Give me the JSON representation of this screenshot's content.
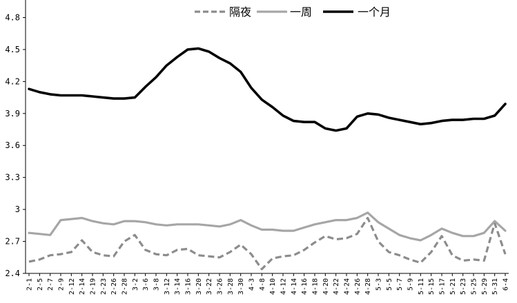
{
  "chart_data": {
    "type": "line",
    "ylim": [
      2.4,
      4.9
    ],
    "yticks": [
      "2.4",
      "2.7",
      "3",
      "3.3",
      "3.6",
      "3.9",
      "4.2",
      "4.5",
      "4.8"
    ],
    "ytick_values": [
      2.4,
      2.7,
      3.0,
      3.3,
      3.6,
      3.9,
      4.2,
      4.5,
      4.8
    ],
    "categories": [
      "2-1",
      "2-5",
      "2-7",
      "2-9",
      "2-12",
      "2-14",
      "2-19",
      "2-23",
      "2-26",
      "2-28",
      "3-2",
      "3-6",
      "3-8",
      "3-12",
      "3-14",
      "3-16",
      "3-20",
      "3-22",
      "3-26",
      "3-28",
      "3-30",
      "4-3",
      "4-8",
      "4-10",
      "4-12",
      "4-14",
      "4-16",
      "4-18",
      "4-20",
      "4-22",
      "4-24",
      "4-26",
      "4-28",
      "5-3",
      "5-5",
      "5-7",
      "5-9",
      "5-11",
      "5-15",
      "5-17",
      "5-21",
      "5-23",
      "5-25",
      "5-29",
      "5-31",
      "6-4"
    ],
    "legend_position": "top-right",
    "grid": false,
    "series": [
      {
        "name": "隔夜",
        "style": "dashed",
        "color": "#8c8c8c",
        "values": [
          2.51,
          2.53,
          2.57,
          2.58,
          2.6,
          2.71,
          2.6,
          2.57,
          2.56,
          2.7,
          2.76,
          2.62,
          2.58,
          2.57,
          2.62,
          2.63,
          2.57,
          2.56,
          2.55,
          2.6,
          2.67,
          2.58,
          2.44,
          2.54,
          2.56,
          2.57,
          2.62,
          2.69,
          2.75,
          2.72,
          2.73,
          2.77,
          2.92,
          2.7,
          2.6,
          2.57,
          2.53,
          2.5,
          2.6,
          2.75,
          2.57,
          2.52,
          2.53,
          2.52,
          2.87,
          2.58
        ]
      },
      {
        "name": "一周",
        "style": "solid",
        "color": "#a6a6a6",
        "values": [
          2.78,
          2.77,
          2.76,
          2.9,
          2.91,
          2.92,
          2.89,
          2.87,
          2.86,
          2.89,
          2.89,
          2.88,
          2.86,
          2.85,
          2.86,
          2.86,
          2.86,
          2.85,
          2.84,
          2.86,
          2.9,
          2.85,
          2.81,
          2.81,
          2.8,
          2.8,
          2.83,
          2.86,
          2.88,
          2.9,
          2.9,
          2.92,
          2.97,
          2.88,
          2.82,
          2.76,
          2.73,
          2.71,
          2.76,
          2.82,
          2.78,
          2.75,
          2.75,
          2.78,
          2.89,
          2.8
        ]
      },
      {
        "name": "一个月",
        "style": "solid",
        "color": "#000000",
        "values": [
          4.13,
          4.1,
          4.08,
          4.07,
          4.07,
          4.07,
          4.06,
          4.05,
          4.04,
          4.04,
          4.05,
          4.15,
          4.24,
          4.35,
          4.43,
          4.5,
          4.51,
          4.48,
          4.42,
          4.37,
          4.29,
          4.14,
          4.03,
          3.96,
          3.88,
          3.83,
          3.82,
          3.82,
          3.76,
          3.74,
          3.76,
          3.87,
          3.9,
          3.89,
          3.86,
          3.84,
          3.82,
          3.8,
          3.81,
          3.83,
          3.84,
          3.84,
          3.85,
          3.85,
          3.88,
          3.99
        ]
      }
    ]
  }
}
